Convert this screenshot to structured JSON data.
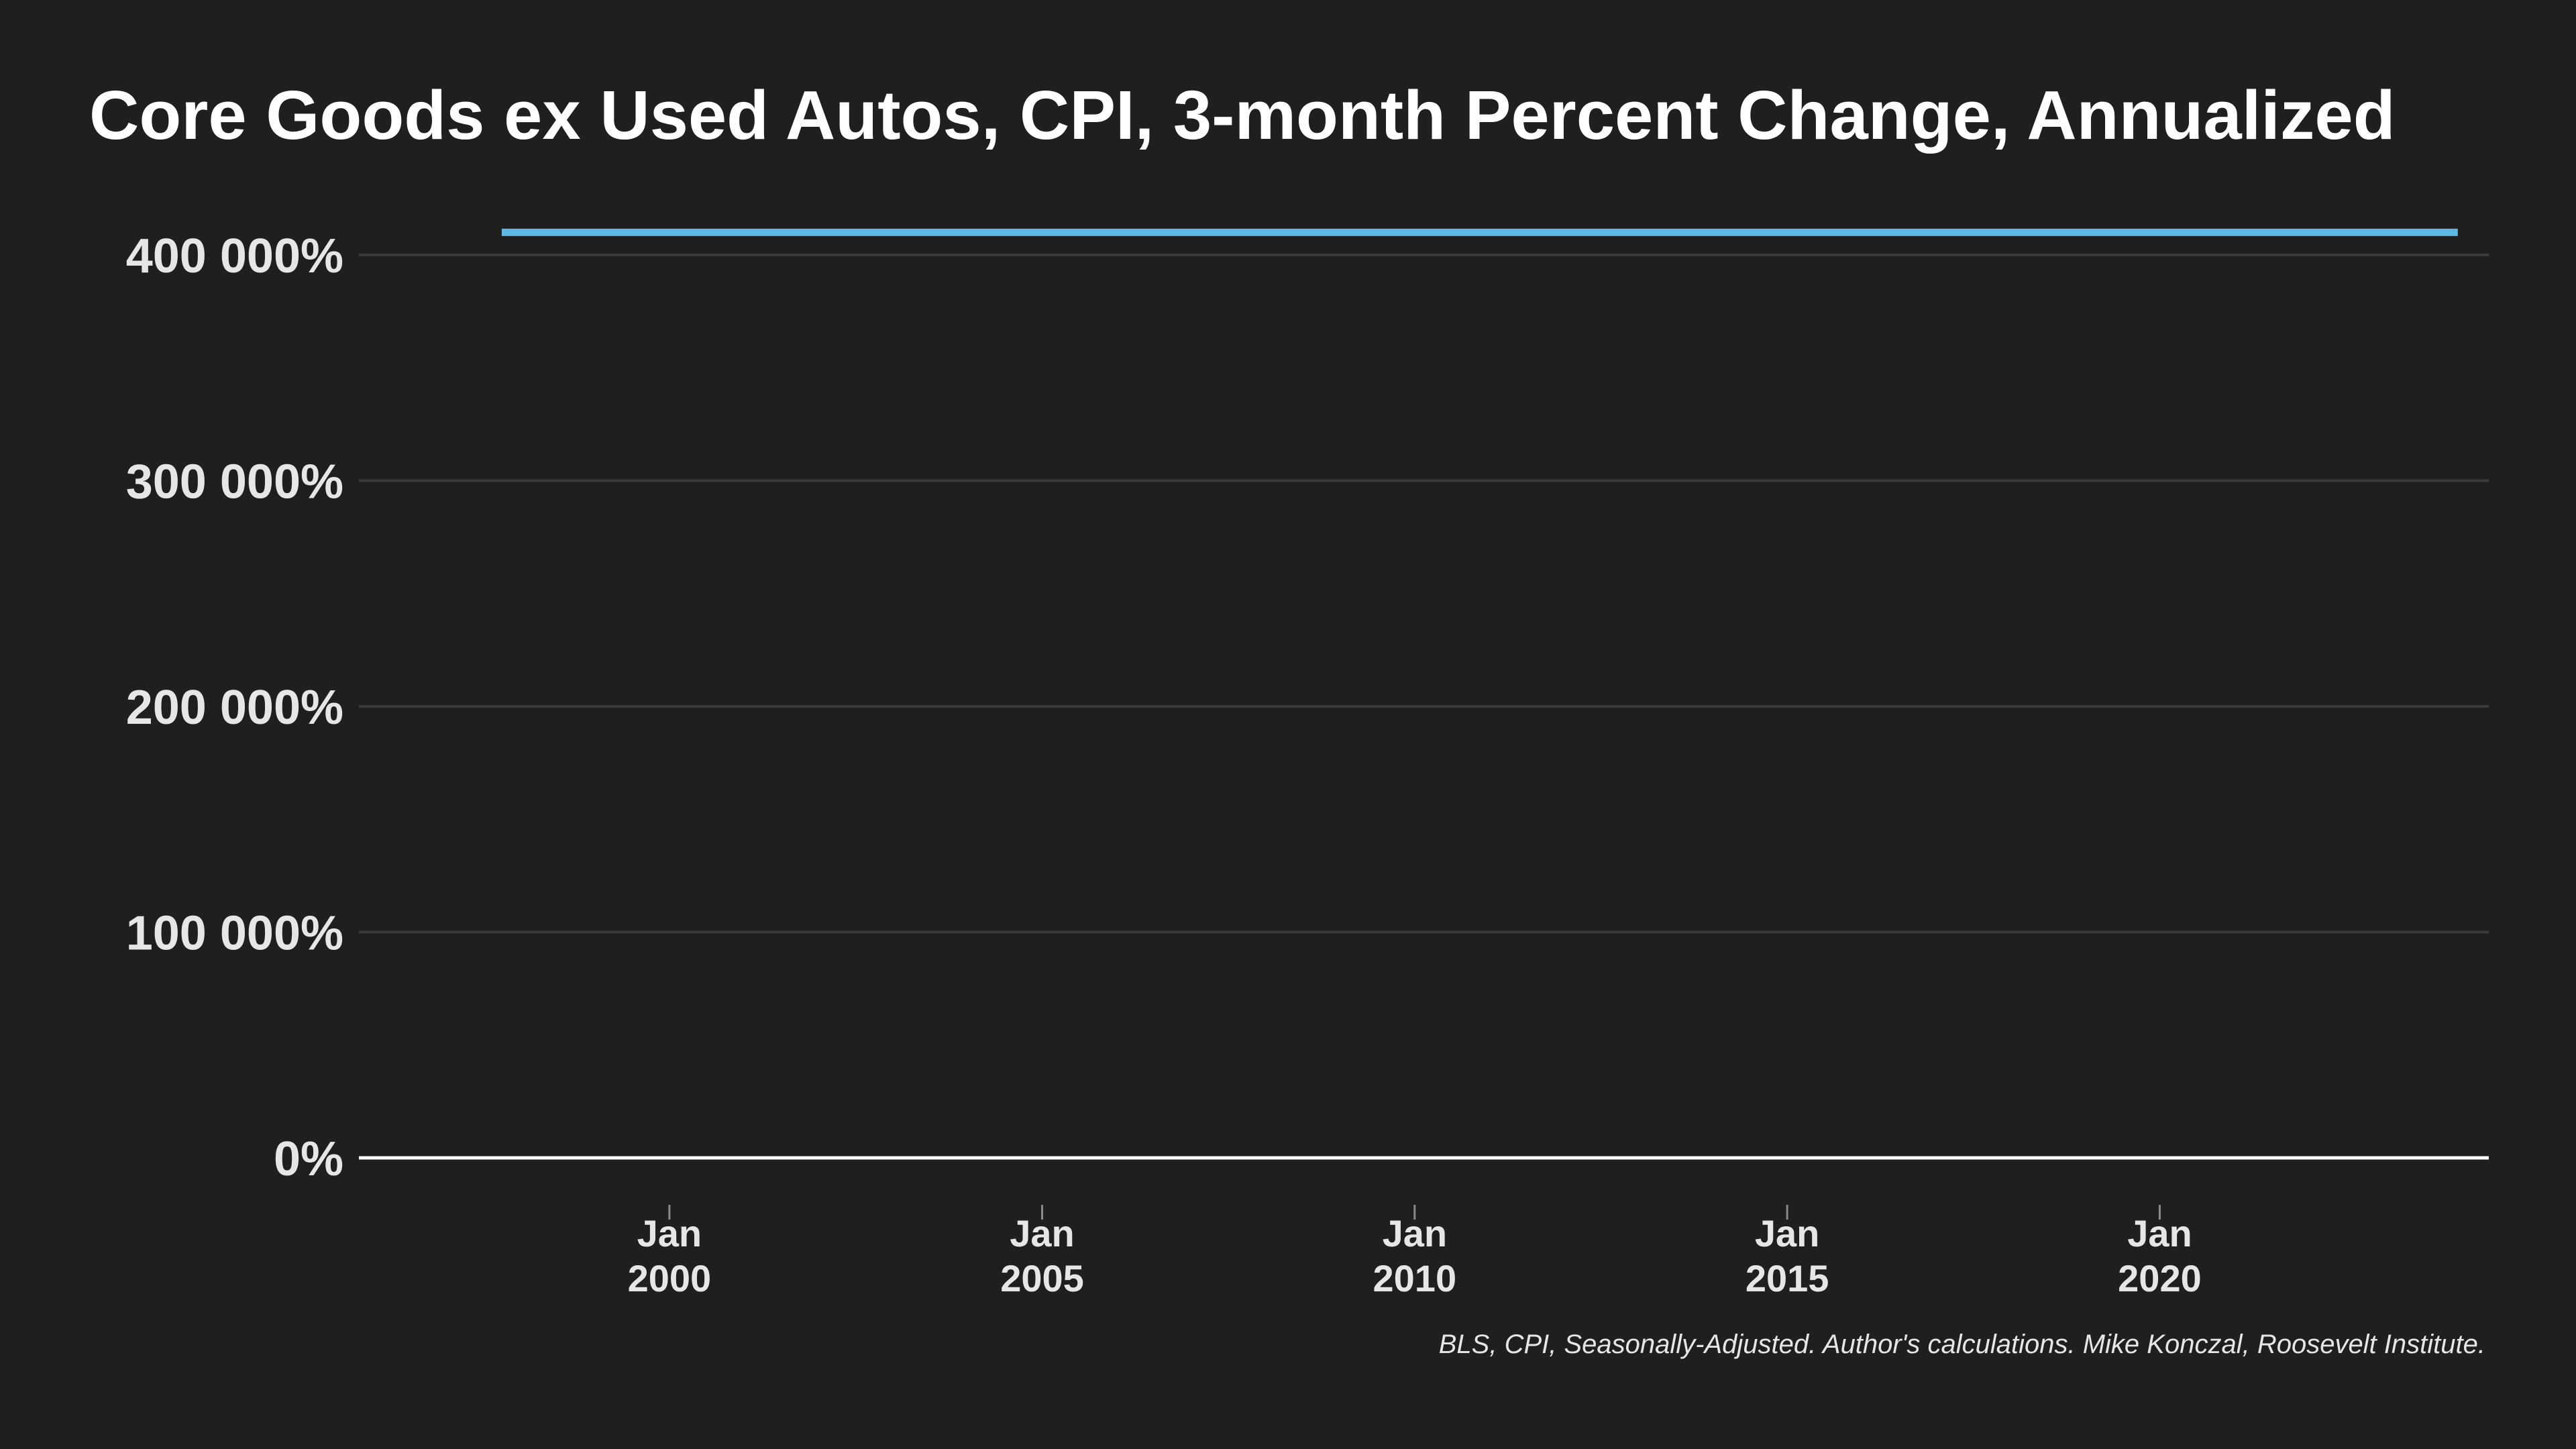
{
  "chart_data": {
    "type": "line",
    "title": "Core Goods ex Used Autos, CPI, 3-month Percent Change, Annualized",
    "caption": "BLS, CPI, Seasonally-Adjusted. Author's calculations. Mike Konczal, Roosevelt Institute.",
    "xlabel": "",
    "ylabel": "",
    "x_range": [
      "1995-11-01",
      "2024-06-01"
    ],
    "ylim": [
      0,
      400000
    ],
    "y_ticks": [
      {
        "value": 400000,
        "label": "400 000%"
      },
      {
        "value": 300000,
        "label": "300 000%"
      },
      {
        "value": 200000,
        "label": "200 000%"
      },
      {
        "value": 100000,
        "label": "100 000%"
      },
      {
        "value": 0,
        "label": "0%"
      }
    ],
    "x_ticks": [
      {
        "date": "2000-01-01",
        "line1": "Jan",
        "line2": "2000"
      },
      {
        "date": "2005-01-01",
        "line1": "Jan",
        "line2": "2005"
      },
      {
        "date": "2010-01-01",
        "line1": "Jan",
        "line2": "2010"
      },
      {
        "date": "2015-01-01",
        "line1": "Jan",
        "line2": "2015"
      },
      {
        "date": "2020-01-01",
        "line1": "Jan",
        "line2": "2020"
      }
    ],
    "grid": true,
    "series": [
      {
        "color": "#5db8e4",
        "points": [
          {
            "x": "1997-10-01",
            "y": 410000
          },
          {
            "x": "2024-01-01",
            "y": 410000
          }
        ]
      }
    ]
  },
  "colors": {
    "background": "#1f1f1f",
    "text": "#e6e6e6",
    "title": "#ffffff",
    "grid": "#3a3a3a",
    "series": "#5db8e4"
  }
}
